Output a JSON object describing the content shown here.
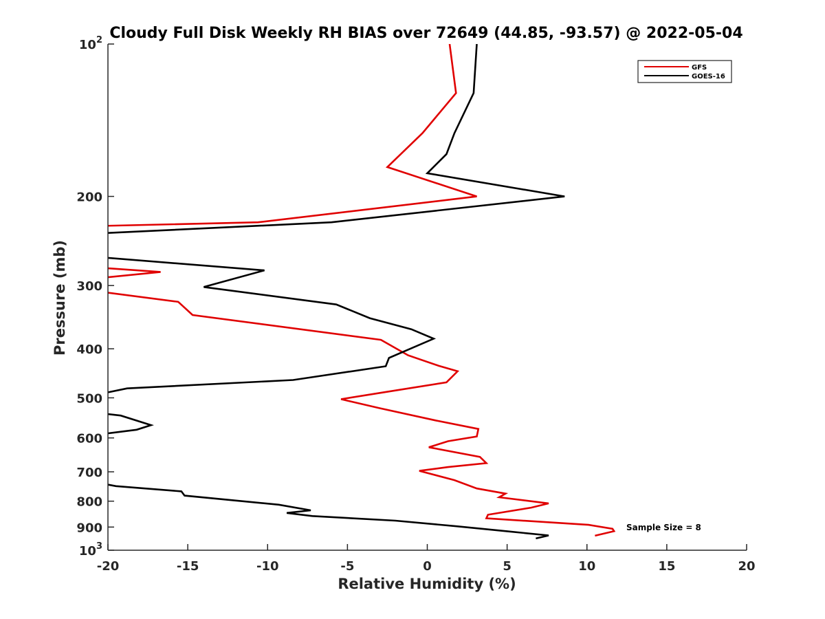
{
  "chart_data": {
    "type": "line",
    "title": "Cloudy Full Disk Weekly RH BIAS over 72649 (44.85, -93.57) @ 2022-05-04",
    "xlabel": "Relative Humidity (%)",
    "ylabel": "Pressure (mb)",
    "xlim": [
      -20,
      20
    ],
    "ylim": [
      100,
      1000
    ],
    "y_scale": "log",
    "y_reversed": true,
    "grid": false,
    "legend_position": "top-right",
    "x_ticks": [
      {
        "value": -20,
        "label": "-20"
      },
      {
        "value": -15,
        "label": "-15"
      },
      {
        "value": -10,
        "label": "-10"
      },
      {
        "value": -5,
        "label": "-5"
      },
      {
        "value": 0,
        "label": "0"
      },
      {
        "value": 5,
        "label": "5"
      },
      {
        "value": 10,
        "label": "10"
      },
      {
        "value": 15,
        "label": "15"
      },
      {
        "value": 20,
        "label": "20"
      }
    ],
    "y_ticks": [
      {
        "value": 100,
        "base": "10",
        "exp": "2"
      },
      {
        "value": 200,
        "label": "200"
      },
      {
        "value": 300,
        "label": "300"
      },
      {
        "value": 400,
        "label": "400"
      },
      {
        "value": 500,
        "label": "500"
      },
      {
        "value": 600,
        "label": "600"
      },
      {
        "value": 700,
        "label": "700"
      },
      {
        "value": 800,
        "label": "800"
      },
      {
        "value": 900,
        "label": "900"
      },
      {
        "value": 1000,
        "base": "10",
        "exp": "3"
      }
    ],
    "annotation": "Sample Size = 8",
    "series": [
      {
        "name": "GFS",
        "color": "#e00000",
        "segments": [
          [
            [
              1.4,
              100
            ],
            [
              1.8,
              125
            ],
            [
              -0.3,
              150
            ],
            [
              -2.5,
              175
            ],
            [
              3.1,
              200
            ],
            [
              -10.6,
              225
            ],
            [
              -21,
              229
            ]
          ],
          [
            [
              -21,
              276
            ],
            [
              -16.7,
              282
            ],
            [
              -21,
              291
            ]
          ],
          [
            [
              -21,
              307
            ],
            [
              -15.6,
              323
            ],
            [
              -14.7,
              343
            ],
            [
              -2.9,
              384
            ],
            [
              -1.2,
              412
            ],
            [
              0.7,
              432
            ],
            [
              1.9,
              443
            ],
            [
              1.2,
              466
            ],
            [
              -2.8,
              488
            ],
            [
              -5.4,
              503
            ],
            [
              -3.0,
              524
            ],
            [
              0.5,
              554
            ],
            [
              3.2,
              576
            ],
            [
              3.1,
              596
            ],
            [
              1.3,
              609
            ],
            [
              0.1,
              626
            ],
            [
              3.3,
              654
            ],
            [
              3.7,
              673
            ],
            [
              1.3,
              685
            ],
            [
              -0.5,
              697
            ],
            [
              1.7,
              727
            ],
            [
              3.1,
              755
            ],
            [
              4.9,
              773
            ],
            [
              4.5,
              786
            ],
            [
              7.6,
              808
            ],
            [
              6.5,
              824
            ],
            [
              3.8,
              851
            ],
            [
              3.7,
              865
            ],
            [
              10.1,
              891
            ],
            [
              11.6,
              907
            ],
            [
              11.7,
              917
            ],
            [
              10.5,
              936
            ]
          ]
        ]
      },
      {
        "name": "GOES-16",
        "color": "#000000",
        "segments": [
          [
            [
              3.1,
              100
            ],
            [
              2.9,
              125
            ],
            [
              1.7,
              150
            ],
            [
              1.2,
              165
            ],
            [
              0,
              180
            ],
            [
              8.6,
              200
            ],
            [
              -6.0,
              225
            ],
            [
              -21,
              237
            ]
          ],
          [
            [
              -21,
              263
            ],
            [
              -10.2,
              280
            ],
            [
              -14.0,
              302
            ],
            [
              -5.7,
              327
            ],
            [
              -3.6,
              348
            ],
            [
              -1.0,
              366
            ],
            [
              0.4,
              382
            ],
            [
              -2.4,
              417
            ],
            [
              -2.6,
              433
            ],
            [
              -8.4,
              461
            ],
            [
              -18.8,
              479
            ],
            [
              -21,
              495
            ]
          ],
          [
            [
              -21,
              534
            ],
            [
              -19.2,
              542
            ],
            [
              -17.3,
              566
            ],
            [
              -18.2,
              578
            ],
            [
              -21,
              593
            ]
          ],
          [
            [
              -21,
              638
            ],
            [
              -20,
              645
            ]
          ],
          [
            [
              -21,
              732
            ],
            [
              -19.5,
              747
            ],
            [
              -15.4,
              765
            ],
            [
              -15.2,
              780
            ],
            [
              -9.3,
              813
            ],
            [
              -7.3,
              834
            ],
            [
              -8.8,
              844
            ],
            [
              -7.2,
              856
            ],
            [
              -2.0,
              874
            ],
            [
              1.9,
              897
            ],
            [
              5.1,
              918
            ],
            [
              7.6,
              935
            ],
            [
              6.8,
              948
            ]
          ]
        ]
      }
    ]
  }
}
